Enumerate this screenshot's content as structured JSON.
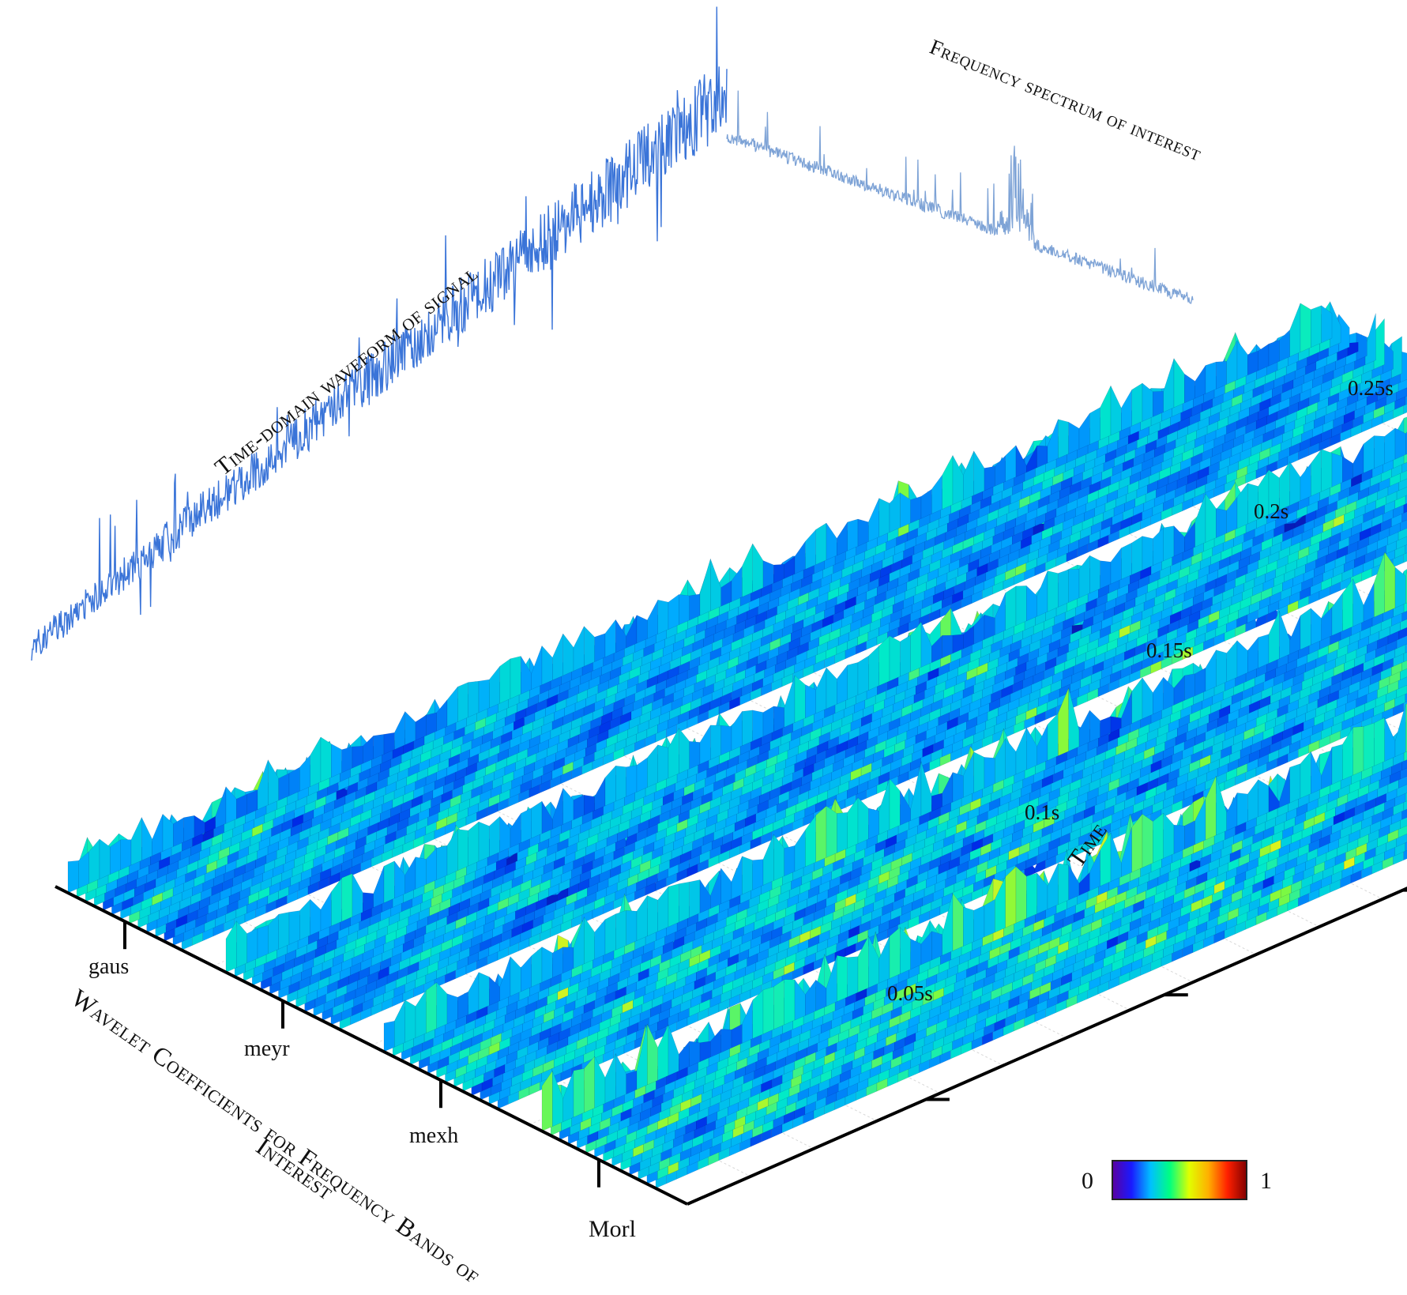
{
  "chart_data": {
    "type": "surface-3d",
    "titles": {
      "time_waveform": "Time-domain waveform of signal",
      "freq_spectrum": "Frequency spectrum  of interest",
      "x_axis": "Wavelet Coefficients for Frequency Bands of Interest",
      "y_axis": "Time"
    },
    "wavelets": [
      "gaus",
      "meyr",
      "mexh",
      "Morl"
    ],
    "time_ticks": [
      "0.05s",
      "0.1s",
      "0.15s",
      "0.2s",
      "0.25s"
    ],
    "colorbar": {
      "min_label": "0",
      "max_label": "1",
      "colors": [
        "#5a00a0",
        "#1a1aff",
        "#00c0ff",
        "#00ff80",
        "#e0ff00",
        "#ffb000",
        "#ff2000",
        "#800000"
      ]
    },
    "band_intensity": [
      0.35,
      0.45,
      0.55,
      0.7
    ],
    "colors": {
      "waveform": "#3a74d8",
      "spectrum": "#7ea3d6"
    }
  }
}
